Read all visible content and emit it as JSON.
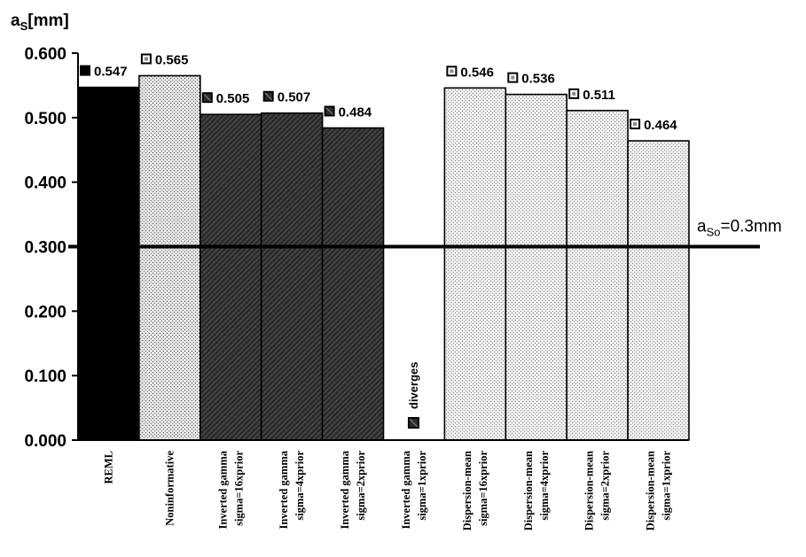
{
  "chart_data": {
    "type": "bar",
    "ylabel": "a",
    "ylabel_sub": "S",
    "ylabel_unit": "[mm]",
    "ylim": [
      0,
      0.6
    ],
    "yticks": [
      "0.000",
      "0.100",
      "0.200",
      "0.300",
      "0.400",
      "0.500",
      "0.600"
    ],
    "grid": false,
    "categories": [
      [
        "REML"
      ],
      [
        "Noninformative"
      ],
      [
        "Inverted gamma",
        "sigma=16xprior"
      ],
      [
        "Inverted gamma",
        "sigma=4xprior"
      ],
      [
        "Inverted gamma",
        "sigma=2xprior"
      ],
      [
        "Inverted gamma",
        "sigma=1xprior"
      ],
      [
        "Dispersion-mean",
        "sigma=16xprior"
      ],
      [
        "Dispersion-mean",
        "sigma=4xprior"
      ],
      [
        "Dispersion-mean",
        "sigma=2xprior"
      ],
      [
        "Dispersion-mean",
        "sigma=1xprior"
      ]
    ],
    "values": [
      0.547,
      0.565,
      0.505,
      0.507,
      0.484,
      null,
      0.546,
      0.536,
      0.511,
      0.464
    ],
    "value_labels": [
      "0.547",
      "0.565",
      "0.505",
      "0.507",
      "0.484",
      "",
      "0.546",
      "0.536",
      "0.511",
      "0.464"
    ],
    "fills": [
      "solid",
      "dots",
      "hatch",
      "hatch",
      "hatch",
      "none",
      "fine-dots",
      "fine-dots",
      "fine-dots",
      "fine-dots"
    ],
    "annotations": [
      {
        "category_index": 5,
        "text": "diverges"
      }
    ],
    "reference_line": {
      "y": 0.3,
      "label_main": "a",
      "label_sub": "So",
      "label_rest": "=0.3mm"
    }
  }
}
